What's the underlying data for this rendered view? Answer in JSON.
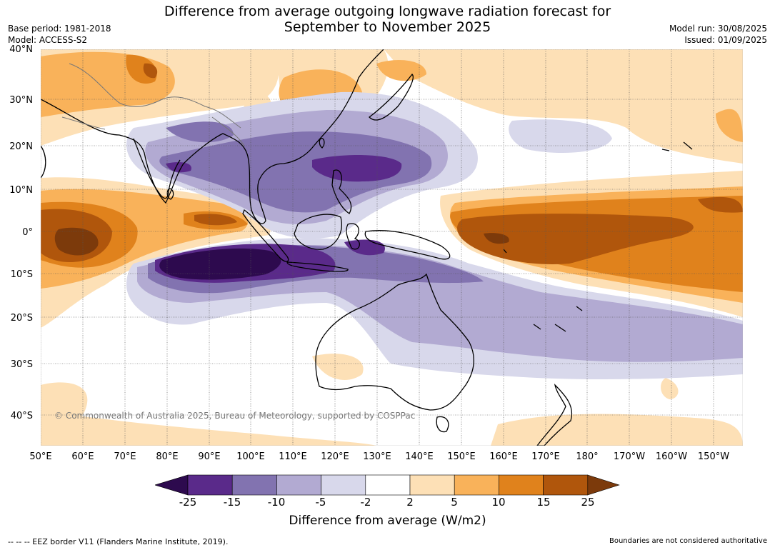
{
  "header": {
    "title_line1": "Difference from average outgoing longwave radiation forecast for",
    "title_line2": "September to November 2025",
    "base_period": "Base period: 1981-2018",
    "model": "Model: ACCESS-S2",
    "model_run": "Model run: 30/08/2025",
    "issued": "Issued: 01/09/2025"
  },
  "map": {
    "lat_labels": [
      "40°N",
      "30°N",
      "20°N",
      "10°N",
      "0°",
      "10°S",
      "20°S",
      "30°S",
      "40°S"
    ],
    "lon_labels": [
      "50°E",
      "60°E",
      "70°E",
      "80°E",
      "90°E",
      "100°E",
      "110°E",
      "120°E",
      "130°E",
      "140°E",
      "150°E",
      "160°E",
      "170°E",
      "180°",
      "170°W",
      "160°W",
      "150°W"
    ],
    "copyright": "© Commonwealth of Australia 2025, Bureau of Meteorology, supported by COSPPac"
  },
  "colorbar": {
    "ticks": [
      "-25",
      "-15",
      "-10",
      "-5",
      "-2",
      "2",
      "5",
      "10",
      "15",
      "25"
    ],
    "colors": [
      "#2d0a4e",
      "#5a2a8a",
      "#8273b0",
      "#b2aad2",
      "#d8d8eb",
      "#ffffff",
      "#fde0b6",
      "#f9b25a",
      "#e0821c",
      "#b0560c",
      "#7c3a0b"
    ],
    "title": "Difference from average (W/m2)"
  },
  "footer": {
    "eez_note": "--  --  -- EEZ border V11 (Flanders Marine Institute, 2019).",
    "boundaries_note": "Boundaries are not considered authoritative"
  }
}
